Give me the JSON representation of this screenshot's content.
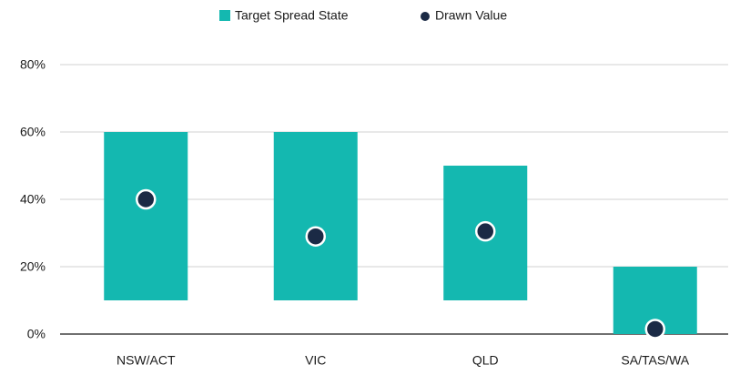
{
  "chart_data": {
    "type": "range-dot",
    "categories": [
      "NSW/ACT",
      "VIC",
      "QLD",
      "SA/TAS/WA"
    ],
    "series": [
      {
        "name": "Target Spread State",
        "color": "#14b8b0",
        "low": [
          10,
          10,
          10,
          0
        ],
        "high": [
          60,
          60,
          50,
          20
        ]
      },
      {
        "name": "Drawn Value",
        "color": "#1b2a45",
        "values": [
          40,
          29,
          30.5,
          1.5
        ]
      }
    ],
    "ylim": [
      0,
      80
    ],
    "yticks": [
      {
        "value": 0,
        "label": "0%"
      },
      {
        "value": 20,
        "label": "20%"
      },
      {
        "value": 40,
        "label": "40%"
      },
      {
        "value": 60,
        "label": "60%"
      },
      {
        "value": 80,
        "label": "80%"
      }
    ],
    "grid": true,
    "legend": "top"
  }
}
